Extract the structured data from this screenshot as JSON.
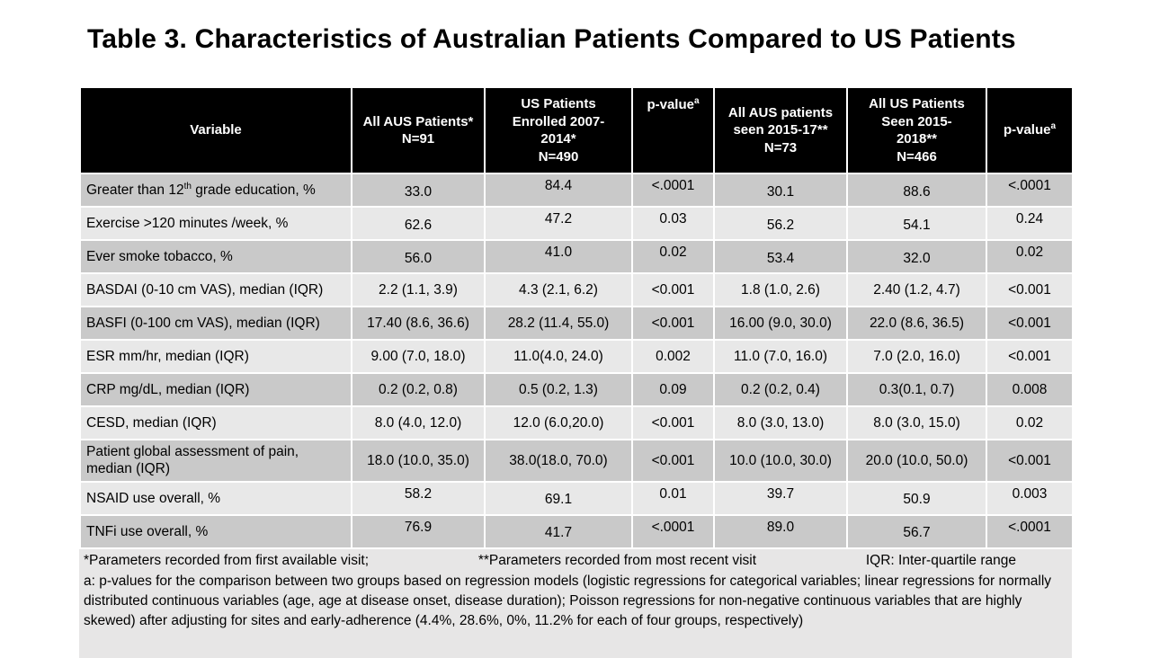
{
  "slide": {
    "title": "Table 3. Characteristics of Australian Patients Compared to US Patients"
  },
  "colors": {
    "header_bg": "#000000",
    "header_text": "#ffffff",
    "row_dark": "#c9c9c9",
    "row_light": "#e8e8e8",
    "footer_bg": "#e7e6e6"
  },
  "table": {
    "columns": [
      {
        "label": "Variable"
      },
      {
        "label": "All AUS Patients*\nN=91"
      },
      {
        "label": "US Patients\nEnrolled 2007-\n2014*\nN=490"
      },
      {
        "label": "p-value",
        "sup": "a"
      },
      {
        "label": "All AUS patients\nseen 2015-17**\nN=73"
      },
      {
        "label": "All US Patients\nSeen 2015-\n2018**\nN=466"
      },
      {
        "label": "p-value",
        "sup": "a"
      }
    ],
    "rows": [
      {
        "label_pre": "Greater than 12",
        "label_sup": "th",
        "label_post": " grade education, %",
        "values": [
          "33.0",
          "84.4",
          "<.0001",
          "30.1",
          "88.6",
          "<.0001"
        ]
      },
      {
        "label_pre": "Exercise >120 minutes /week, %",
        "values": [
          "62.6",
          "47.2",
          "0.03",
          "56.2",
          "54.1",
          "0.24"
        ]
      },
      {
        "label_pre": "Ever smoke tobacco, %",
        "values": [
          "56.0",
          "41.0",
          "0.02",
          "53.4",
          "32.0",
          "0.02"
        ]
      },
      {
        "label_pre": "BASDAI (0-10 cm VAS), median (IQR)",
        "values": [
          "2.2 (1.1, 3.9)",
          "4.3 (2.1, 6.2)",
          "<0.001",
          "1.8 (1.0, 2.6)",
          "2.40 (1.2, 4.7)",
          "<0.001"
        ]
      },
      {
        "label_pre": "BASFI (0-100 cm VAS), median (IQR)",
        "values": [
          "17.40 (8.6, 36.6)",
          "28.2 (11.4, 55.0)",
          "<0.001",
          "16.00 (9.0, 30.0)",
          "22.0 (8.6, 36.5)",
          "<0.001"
        ]
      },
      {
        "label_pre": "ESR mm/hr, median (IQR)",
        "values": [
          "9.00 (7.0, 18.0)",
          "11.0(4.0, 24.0)",
          "0.002",
          "11.0 (7.0, 16.0)",
          "7.0 (2.0, 16.0)",
          "<0.001"
        ]
      },
      {
        "label_pre": "CRP mg/dL, median (IQR)",
        "values": [
          "0.2 (0.2, 0.8)",
          "0.5 (0.2, 1.3)",
          "0.09",
          "0.2 (0.2, 0.4)",
          "0.3(0.1, 0.7)",
          "0.008"
        ]
      },
      {
        "label_pre": "CESD, median (IQR)",
        "values": [
          "8.0 (4.0, 12.0)",
          "12.0 (6.0,20.0)",
          "<0.001",
          "8.0 (3.0, 13.0)",
          "8.0 (3.0, 15.0)",
          "0.02"
        ]
      },
      {
        "label_pre": "Patient global assessment of pain, median (IQR)",
        "values": [
          "18.0 (10.0, 35.0)",
          "38.0(18.0, 70.0)",
          "<0.001",
          "10.0 (10.0, 30.0)",
          "20.0 (10.0, 50.0)",
          "<0.001"
        ]
      },
      {
        "label_pre": "NSAID use overall, %",
        "values": [
          "58.2",
          "69.1",
          "0.01",
          "39.7",
          "50.9",
          "0.003"
        ]
      },
      {
        "label_pre": "TNFi use overall, %",
        "values": [
          "76.9",
          "41.7",
          "<.0001",
          "89.0",
          "56.7",
          "<.0001"
        ]
      }
    ]
  },
  "footnotes": {
    "line1": {
      "part1": "*Parameters recorded from first available visit;",
      "part2": "**Parameters recorded from most recent visit",
      "part3": "IQR: Inter-quartile range"
    },
    "note_a": "a: p-values for the comparison between two groups based on regression models (logistic regressions for categorical variables; linear regressions for normally distributed continuous variables (age, age at disease onset, disease duration); Poisson regressions for non-negative continuous variables that are highly skewed) after adjusting for sites and early-adherence (4.4%, 28.6%, 0%, 11.2% for each of four groups, respectively)"
  }
}
